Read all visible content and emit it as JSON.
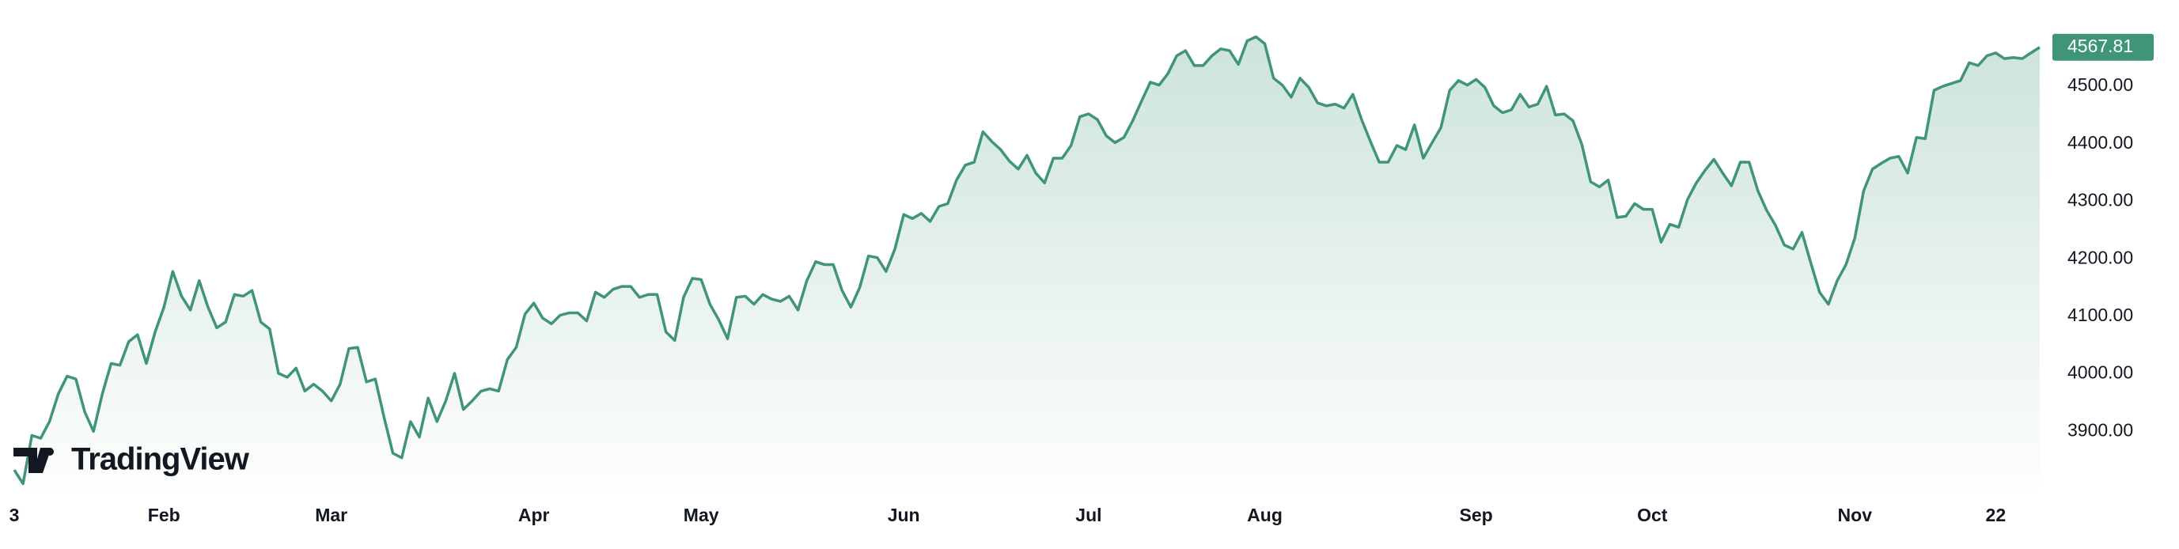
{
  "chart_data": {
    "type": "line",
    "watermark": "TradingView",
    "categories": [
      "3",
      null,
      null,
      null,
      null,
      null,
      null,
      null,
      null,
      null,
      null,
      null,
      null,
      null,
      null,
      null,
      null,
      "Feb",
      null,
      null,
      null,
      null,
      null,
      null,
      null,
      null,
      null,
      null,
      null,
      null,
      null,
      null,
      null,
      null,
      null,
      null,
      "Mar",
      null,
      null,
      null,
      null,
      null,
      null,
      null,
      null,
      null,
      null,
      null,
      null,
      null,
      null,
      null,
      null,
      null,
      null,
      null,
      null,
      null,
      null,
      "Apr",
      null,
      null,
      null,
      null,
      null,
      null,
      null,
      null,
      null,
      null,
      null,
      null,
      null,
      null,
      null,
      null,
      null,
      null,
      "May",
      null,
      null,
      null,
      null,
      null,
      null,
      null,
      null,
      null,
      null,
      null,
      null,
      null,
      null,
      null,
      null,
      null,
      null,
      null,
      null,
      null,
      null,
      "Jun",
      null,
      null,
      null,
      null,
      null,
      null,
      null,
      null,
      null,
      null,
      null,
      null,
      null,
      null,
      null,
      null,
      null,
      null,
      null,
      null,
      "Jul",
      null,
      null,
      null,
      null,
      null,
      null,
      null,
      null,
      null,
      null,
      null,
      null,
      null,
      null,
      null,
      null,
      null,
      null,
      null,
      "Aug",
      null,
      null,
      null,
      null,
      null,
      null,
      null,
      null,
      null,
      null,
      null,
      null,
      null,
      null,
      null,
      null,
      null,
      null,
      null,
      null,
      null,
      null,
      null,
      "Sep",
      null,
      null,
      null,
      null,
      null,
      null,
      null,
      null,
      null,
      null,
      null,
      null,
      null,
      null,
      null,
      null,
      null,
      null,
      null,
      "Oct",
      null,
      null,
      null,
      null,
      null,
      null,
      null,
      null,
      null,
      null,
      null,
      null,
      null,
      null,
      null,
      null,
      null,
      null,
      null,
      null,
      null,
      null,
      "Nov",
      null,
      null,
      null,
      null,
      null,
      null,
      null,
      null,
      null,
      null,
      null,
      null,
      null,
      null,
      null,
      "22",
      null,
      null,
      null,
      null,
      null
    ],
    "series": [
      {
        "color": "#3f9479",
        "values": [
          3833,
          3809,
          3893,
          3888,
          3917,
          3965,
          3996,
          3991,
          3934,
          3900,
          3965,
          4018,
          4015,
          4056,
          4068,
          4018,
          4073,
          4116,
          4178,
          4135,
          4111,
          4162,
          4116,
          4080,
          4090,
          4138,
          4135,
          4145,
          4090,
          4078,
          4001,
          3994,
          4010,
          3970,
          3982,
          3970,
          3953,
          3982,
          4044,
          4046,
          3986,
          3991,
          3924,
          3862,
          3854,
          3917,
          3890,
          3958,
          3917,
          3953,
          4001,
          3938,
          3953,
          3970,
          3974,
          3970,
          4025,
          4046,
          4104,
          4123,
          4097,
          4087,
          4102,
          4106,
          4106,
          4092,
          4142,
          4133,
          4147,
          4152,
          4152,
          4133,
          4138,
          4138,
          4073,
          4058,
          4133,
          4166,
          4164,
          4121,
          4094,
          4061,
          4133,
          4135,
          4121,
          4138,
          4130,
          4126,
          4135,
          4111,
          4162,
          4195,
          4190,
          4190,
          4145,
          4116,
          4150,
          4205,
          4202,
          4178,
          4217,
          4277,
          4270,
          4279,
          4265,
          4291,
          4296,
          4337,
          4363,
          4368,
          4421,
          4404,
          4390,
          4370,
          4356,
          4380,
          4349,
          4332,
          4375,
          4375,
          4397,
          4447,
          4452,
          4442,
          4414,
          4402,
          4411,
          4440,
          4474,
          4507,
          4502,
          4522,
          4553,
          4562,
          4536,
          4536,
          4553,
          4565,
          4562,
          4538,
          4579,
          4586,
          4574,
          4514,
          4502,
          4481,
          4514,
          4498,
          4471,
          4466,
          4469,
          4462,
          4486,
          4442,
          4404,
          4368,
          4368,
          4397,
          4390,
          4433,
          4375,
          4402,
          4428,
          4493,
          4510,
          4502,
          4512,
          4498,
          4466,
          4454,
          4459,
          4486,
          4464,
          4469,
          4500,
          4450,
          4452,
          4440,
          4399,
          4334,
          4325,
          4337,
          4272,
          4274,
          4296,
          4286,
          4286,
          4229,
          4260,
          4255,
          4303,
          4332,
          4354,
          4373,
          4349,
          4327,
          4368,
          4368,
          4318,
          4284,
          4258,
          4224,
          4217,
          4246,
          4193,
          4142,
          4121,
          4162,
          4190,
          4236,
          4318,
          4356,
          4366,
          4375,
          4378,
          4349,
          4411,
          4409,
          4493,
          4500,
          4505,
          4510,
          4541,
          4536,
          4553,
          4558,
          4548,
          4550,
          4548,
          4558,
          4567.81
        ]
      }
    ],
    "ylim": [
      3800,
      4650
    ],
    "yticks": [
      {
        "value": 3900,
        "label": "3900.00"
      },
      {
        "value": 4000,
        "label": "4000.00"
      },
      {
        "value": 4100,
        "label": "4100.00"
      },
      {
        "value": 4200,
        "label": "4200.00"
      },
      {
        "value": 4300,
        "label": "4300.00"
      },
      {
        "value": 4400,
        "label": "4400.00"
      },
      {
        "value": 4500,
        "label": "4500.00"
      }
    ],
    "grid": false
  }
}
